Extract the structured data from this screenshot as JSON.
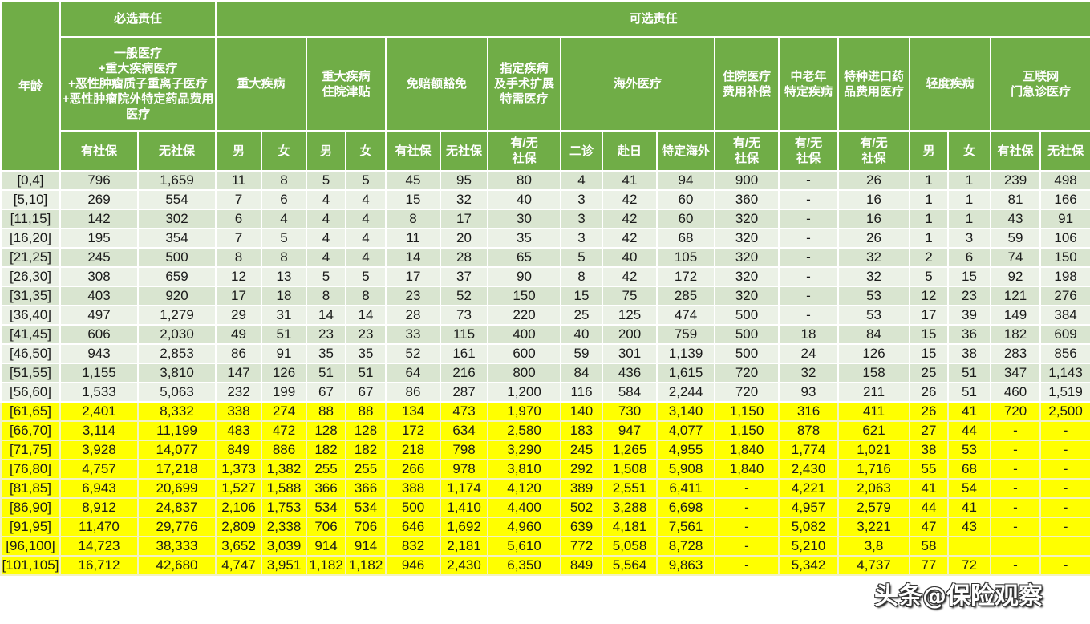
{
  "header": {
    "age": "年龄",
    "required_group": "必选责任",
    "optional_group": "可选责任",
    "required_title_lines": [
      "一般医疗",
      "+重大疾病医疗",
      "+恶性肿瘤质子重离子医疗",
      "+恶性肿瘤院外特定药品费用医疗"
    ],
    "groups": [
      {
        "label": "重大疾病"
      },
      {
        "label": "重大疾病\n住院津贴"
      },
      {
        "label": "免赔额豁免"
      },
      {
        "label": "指定疾病\n及手术扩展\n特需医疗"
      },
      {
        "label": "海外医疗"
      },
      {
        "label": "住院医疗\n费用补偿"
      },
      {
        "label": "中老年\n特定疾病"
      },
      {
        "label": "特种进口药\n品费用医疗"
      },
      {
        "label": "轻度疾病"
      },
      {
        "label": "互联网\n门急诊医疗"
      }
    ],
    "subheaders": [
      "有社保",
      "无社保",
      "男",
      "女",
      "男",
      "女",
      "有社保",
      "无社保",
      "有/无\n社保",
      "二诊",
      "赴日",
      "特定海外",
      "有/无\n社保",
      "有/无\n社保",
      "有/无\n社保",
      "男",
      "女",
      "有社保",
      "无社保"
    ]
  },
  "colors": {
    "header_green": "#70ad47",
    "row_odd": "#d9e5d0",
    "row_even": "#ebf1e6",
    "highlight_yellow": "#ffff00"
  },
  "rows": [
    {
      "age": "[0,4]",
      "values": [
        "796",
        "1,659",
        "11",
        "8",
        "5",
        "5",
        "45",
        "95",
        "80",
        "4",
        "41",
        "94",
        "900",
        "-",
        "26",
        "1",
        "1",
        "239",
        "498"
      ],
      "highlight": false
    },
    {
      "age": "[5,10]",
      "values": [
        "269",
        "554",
        "7",
        "6",
        "4",
        "4",
        "15",
        "32",
        "40",
        "3",
        "42",
        "60",
        "360",
        "-",
        "16",
        "1",
        "1",
        "81",
        "166"
      ],
      "highlight": false
    },
    {
      "age": "[11,15]",
      "values": [
        "142",
        "302",
        "6",
        "4",
        "4",
        "4",
        "8",
        "17",
        "30",
        "3",
        "42",
        "60",
        "320",
        "-",
        "16",
        "1",
        "1",
        "43",
        "91"
      ],
      "highlight": false
    },
    {
      "age": "[16,20]",
      "values": [
        "195",
        "354",
        "7",
        "5",
        "4",
        "4",
        "11",
        "20",
        "35",
        "3",
        "42",
        "68",
        "320",
        "-",
        "26",
        "1",
        "3",
        "59",
        "106"
      ],
      "highlight": false
    },
    {
      "age": "[21,25]",
      "values": [
        "245",
        "500",
        "8",
        "8",
        "4",
        "4",
        "14",
        "28",
        "65",
        "5",
        "40",
        "105",
        "320",
        "-",
        "32",
        "2",
        "6",
        "74",
        "150"
      ],
      "highlight": false
    },
    {
      "age": "[26,30]",
      "values": [
        "308",
        "659",
        "12",
        "13",
        "5",
        "5",
        "17",
        "37",
        "90",
        "8",
        "42",
        "172",
        "320",
        "-",
        "32",
        "5",
        "15",
        "92",
        "198"
      ],
      "highlight": false
    },
    {
      "age": "[31,35]",
      "values": [
        "403",
        "920",
        "17",
        "18",
        "8",
        "8",
        "23",
        "52",
        "150",
        "15",
        "75",
        "285",
        "320",
        "-",
        "53",
        "12",
        "23",
        "121",
        "276"
      ],
      "highlight": false
    },
    {
      "age": "[36,40]",
      "values": [
        "497",
        "1,279",
        "29",
        "31",
        "14",
        "14",
        "28",
        "73",
        "220",
        "25",
        "125",
        "474",
        "500",
        "-",
        "53",
        "17",
        "39",
        "149",
        "384"
      ],
      "highlight": false
    },
    {
      "age": "[41,45]",
      "values": [
        "606",
        "2,030",
        "49",
        "51",
        "23",
        "23",
        "33",
        "115",
        "400",
        "40",
        "200",
        "759",
        "500",
        "18",
        "84",
        "15",
        "36",
        "182",
        "609"
      ],
      "highlight": false
    },
    {
      "age": "[46,50]",
      "values": [
        "943",
        "2,853",
        "86",
        "91",
        "35",
        "35",
        "52",
        "161",
        "600",
        "59",
        "301",
        "1,139",
        "500",
        "24",
        "126",
        "15",
        "38",
        "283",
        "856"
      ],
      "highlight": false
    },
    {
      "age": "[51,55]",
      "values": [
        "1,155",
        "3,810",
        "147",
        "126",
        "51",
        "51",
        "64",
        "216",
        "800",
        "84",
        "436",
        "1,615",
        "720",
        "32",
        "158",
        "25",
        "51",
        "347",
        "1,143"
      ],
      "highlight": false
    },
    {
      "age": "[56,60]",
      "values": [
        "1,533",
        "5,063",
        "232",
        "199",
        "67",
        "67",
        "86",
        "287",
        "1,200",
        "116",
        "584",
        "2,244",
        "720",
        "93",
        "211",
        "26",
        "51",
        "460",
        "1,519"
      ],
      "highlight": false
    },
    {
      "age": "[61,65]",
      "values": [
        "2,401",
        "8,332",
        "338",
        "274",
        "88",
        "88",
        "134",
        "473",
        "1,970",
        "140",
        "730",
        "3,140",
        "1,150",
        "316",
        "411",
        "26",
        "41",
        "720",
        "2,500"
      ],
      "highlight": true
    },
    {
      "age": "[66,70]",
      "values": [
        "3,114",
        "11,199",
        "483",
        "472",
        "128",
        "128",
        "172",
        "634",
        "2,580",
        "183",
        "947",
        "4,077",
        "1,150",
        "878",
        "621",
        "27",
        "44",
        "-",
        "-"
      ],
      "highlight": true
    },
    {
      "age": "[71,75]",
      "values": [
        "3,928",
        "14,077",
        "849",
        "886",
        "182",
        "182",
        "218",
        "798",
        "3,290",
        "245",
        "1,265",
        "4,955",
        "1,840",
        "1,774",
        "1,021",
        "38",
        "53",
        "-",
        "-"
      ],
      "highlight": true
    },
    {
      "age": "[76,80]",
      "values": [
        "4,757",
        "17,218",
        "1,373",
        "1,382",
        "255",
        "255",
        "266",
        "978",
        "3,810",
        "292",
        "1,508",
        "5,908",
        "1,840",
        "2,430",
        "1,716",
        "55",
        "68",
        "-",
        "-"
      ],
      "highlight": true
    },
    {
      "age": "[81,85]",
      "values": [
        "6,943",
        "20,699",
        "1,527",
        "1,588",
        "366",
        "366",
        "388",
        "1,174",
        "4,120",
        "389",
        "2,551",
        "6,411",
        "-",
        "4,221",
        "2,063",
        "41",
        "54",
        "-",
        "-"
      ],
      "highlight": true
    },
    {
      "age": "[86,90]",
      "values": [
        "8,912",
        "24,837",
        "2,106",
        "1,753",
        "534",
        "534",
        "500",
        "1,410",
        "4,400",
        "502",
        "3,288",
        "6,698",
        "-",
        "4,957",
        "2,579",
        "44",
        "41",
        "-",
        "-"
      ],
      "highlight": true
    },
    {
      "age": "[91,95]",
      "values": [
        "11,470",
        "29,776",
        "2,809",
        "2,338",
        "706",
        "706",
        "646",
        "1,692",
        "4,960",
        "639",
        "4,181",
        "7,561",
        "-",
        "5,082",
        "3,221",
        "47",
        "43",
        "-",
        "-"
      ],
      "highlight": true
    },
    {
      "age": "[96,100]",
      "values": [
        "14,723",
        "38,333",
        "3,652",
        "3,039",
        "914",
        "914",
        "832",
        "2,181",
        "5,610",
        "772",
        "5,058",
        "8,728",
        "-",
        "5,210",
        "3,8",
        "58",
        "",
        "",
        ""
      ],
      "highlight": true
    },
    {
      "age": "[101,105]",
      "values": [
        "16,712",
        "42,680",
        "4,747",
        "3,951",
        "1,182",
        "1,182",
        "946",
        "2,430",
        "6,350",
        "849",
        "5,564",
        "9,863",
        "-",
        "5,342",
        "4,737",
        "77",
        "72",
        "-",
        "-"
      ],
      "highlight": true
    }
  ],
  "watermark": "头条@保险观察"
}
